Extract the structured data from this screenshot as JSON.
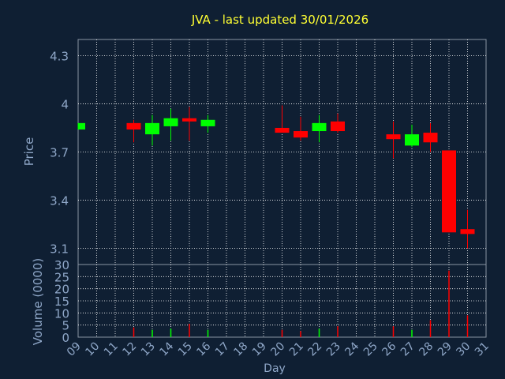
{
  "colors": {
    "background": "#0f1f33",
    "plot_border": "#8a94a3",
    "grid": "#ffffff",
    "title": "#ffff33",
    "axis_text": "#8fa7c8",
    "up": "#00ff00",
    "down": "#ff0000"
  },
  "chart_data": [
    {
      "type": "candlestick",
      "title": "JVA - last updated 30/01/2026",
      "ylabel": "Price",
      "ylim": [
        3.0,
        4.4
      ],
      "yticks": [
        "3.1",
        "3.4",
        "3.7",
        "4",
        "4.3"
      ],
      "grid": true,
      "candles": [
        {
          "day": 9,
          "open": 3.84,
          "high": 3.88,
          "low": 3.84,
          "close": 3.88
        },
        {
          "day": 12,
          "open": 3.88,
          "high": 3.9,
          "low": 3.76,
          "close": 3.84
        },
        {
          "day": 13,
          "open": 3.81,
          "high": 3.93,
          "low": 3.74,
          "close": 3.88
        },
        {
          "day": 14,
          "open": 3.86,
          "high": 3.97,
          "low": 3.77,
          "close": 3.91
        },
        {
          "day": 15,
          "open": 3.91,
          "high": 3.98,
          "low": 3.77,
          "close": 3.89
        },
        {
          "day": 16,
          "open": 3.86,
          "high": 3.93,
          "low": 3.82,
          "close": 3.9
        },
        {
          "day": 20,
          "open": 3.85,
          "high": 3.99,
          "low": 3.83,
          "close": 3.82
        },
        {
          "day": 21,
          "open": 3.83,
          "high": 3.92,
          "low": 3.77,
          "close": 3.79
        },
        {
          "day": 22,
          "open": 3.83,
          "high": 3.93,
          "low": 3.76,
          "close": 3.88
        },
        {
          "day": 23,
          "open": 3.89,
          "high": 3.94,
          "low": 3.82,
          "close": 3.83
        },
        {
          "day": 26,
          "open": 3.81,
          "high": 3.89,
          "low": 3.66,
          "close": 3.78
        },
        {
          "day": 27,
          "open": 3.74,
          "high": 3.87,
          "low": 3.73,
          "close": 3.81
        },
        {
          "day": 28,
          "open": 3.82,
          "high": 3.88,
          "low": 3.7,
          "close": 3.76
        },
        {
          "day": 29,
          "open": 3.71,
          "high": 3.71,
          "low": 3.2,
          "close": 3.2
        },
        {
          "day": 30,
          "open": 3.22,
          "high": 3.34,
          "low": 3.1,
          "close": 3.19
        }
      ]
    },
    {
      "type": "bar",
      "ylabel": "Volume (0000)",
      "xlabel": "Day",
      "ylim": [
        0,
        30
      ],
      "yticks": [
        "0",
        "5",
        "10",
        "15",
        "20",
        "25",
        "30"
      ],
      "xlim": [
        9,
        31
      ],
      "xticks": [
        "09",
        "10",
        "11",
        "12",
        "13",
        "14",
        "15",
        "16",
        "17",
        "18",
        "19",
        "20",
        "21",
        "22",
        "23",
        "24",
        "25",
        "26",
        "27",
        "28",
        "29",
        "30",
        "31"
      ],
      "grid": true,
      "bars": [
        {
          "day": 12,
          "value": 4,
          "direction": "down"
        },
        {
          "day": 13,
          "value": 3,
          "direction": "up"
        },
        {
          "day": 14,
          "value": 3.5,
          "direction": "up"
        },
        {
          "day": 15,
          "value": 5.5,
          "direction": "down"
        },
        {
          "day": 16,
          "value": 3,
          "direction": "up"
        },
        {
          "day": 20,
          "value": 3,
          "direction": "down"
        },
        {
          "day": 21,
          "value": 2.5,
          "direction": "down"
        },
        {
          "day": 22,
          "value": 3.5,
          "direction": "up"
        },
        {
          "day": 23,
          "value": 4.5,
          "direction": "down"
        },
        {
          "day": 26,
          "value": 4.5,
          "direction": "down"
        },
        {
          "day": 27,
          "value": 3,
          "direction": "up"
        },
        {
          "day": 28,
          "value": 7,
          "direction": "down"
        },
        {
          "day": 29,
          "value": 27.5,
          "direction": "down"
        },
        {
          "day": 30,
          "value": 9,
          "direction": "down"
        }
      ]
    }
  ]
}
